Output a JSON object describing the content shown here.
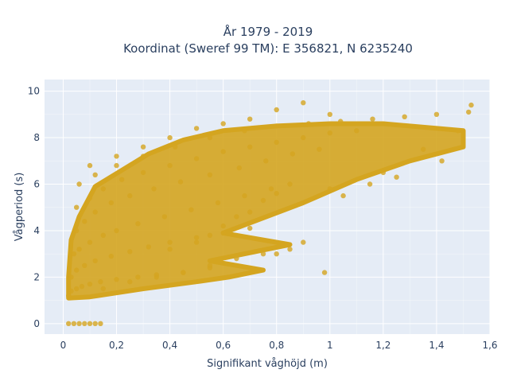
{
  "chart_data": {
    "type": "scatter",
    "title": [
      "År 1979 - 2019",
      "Koordinat (Sweref 99 TM): E 356821, N 6235240"
    ],
    "xlabel": "Signifikant våghöjd (m)",
    "ylabel": "Vågperiod (s)",
    "xlim": [
      -0.07,
      1.6
    ],
    "ylim": [
      -0.45,
      10.5
    ],
    "xticks": [
      0,
      0.2,
      0.4,
      0.6,
      0.8,
      1,
      1.2,
      1.4,
      1.6
    ],
    "xtick_labels": [
      "0",
      "0,2",
      "0,4",
      "0,6",
      "0,8",
      "1",
      "1,2",
      "1,4",
      "1,6"
    ],
    "yticks": [
      0,
      2,
      4,
      6,
      8,
      10
    ],
    "ytick_labels": [
      "0",
      "2",
      "4",
      "6",
      "8",
      "10"
    ],
    "grid": true,
    "colors": {
      "marker": "#D4A520",
      "plot_bg": "#E5ECF6",
      "grid": "#ffffff"
    },
    "series": [
      {
        "x": [
          0.02,
          0.04,
          0.06,
          0.08,
          0.1,
          0.12,
          0.14,
          0.02,
          0.03,
          0.05,
          0.07,
          0.1,
          0.14,
          0.2,
          0.28,
          0.35,
          0.45,
          0.55,
          0.03,
          0.05,
          0.08,
          0.12,
          0.18,
          0.25,
          0.32,
          0.4,
          0.5,
          0.6,
          0.7,
          0.04,
          0.06,
          0.1,
          0.15,
          0.2,
          0.28,
          0.38,
          0.48,
          0.58,
          0.68,
          0.78,
          0.05,
          0.08,
          0.12,
          0.18,
          0.25,
          0.34,
          0.44,
          0.55,
          0.66,
          0.76,
          0.86,
          0.96,
          0.05,
          0.1,
          0.15,
          0.22,
          0.3,
          0.4,
          0.5,
          0.6,
          0.7,
          0.8,
          0.9,
          1.0,
          1.1,
          0.06,
          0.12,
          0.2,
          0.3,
          0.42,
          0.55,
          0.68,
          0.8,
          0.92,
          1.04,
          1.16,
          1.28,
          1.4,
          1.52,
          0.1,
          0.2,
          0.3,
          0.4,
          0.5,
          0.6,
          0.7,
          0.8,
          0.9,
          0.15,
          0.25,
          0.35,
          0.45,
          0.55,
          0.65,
          0.75,
          0.85,
          1.0,
          1.2,
          1.35,
          1.48,
          1.53,
          0.4,
          0.5,
          0.55,
          0.6,
          0.65,
          0.7,
          0.75,
          0.8,
          0.85,
          0.8,
          0.9,
          1.05,
          1.15,
          1.25,
          1.42,
          0.98,
          1.0
        ],
        "y": [
          0.0,
          0.0,
          0.0,
          0.0,
          0.0,
          0.0,
          0.0,
          1.2,
          1.4,
          1.5,
          1.6,
          1.7,
          1.8,
          1.9,
          2.0,
          2.1,
          2.2,
          2.4,
          2.0,
          2.3,
          2.5,
          2.7,
          2.9,
          3.1,
          3.3,
          3.5,
          3.7,
          3.9,
          4.1,
          3.0,
          3.2,
          3.5,
          3.8,
          4.0,
          4.3,
          4.6,
          4.9,
          5.2,
          5.5,
          5.8,
          4.0,
          4.4,
          4.8,
          5.2,
          5.5,
          5.8,
          6.1,
          6.4,
          6.7,
          7.0,
          7.3,
          7.5,
          5.0,
          5.4,
          5.8,
          6.2,
          6.5,
          6.8,
          7.1,
          7.4,
          7.6,
          7.8,
          8.0,
          8.2,
          8.3,
          6.0,
          6.4,
          6.8,
          7.2,
          7.6,
          8.0,
          8.3,
          8.5,
          8.6,
          8.7,
          8.8,
          8.9,
          9.0,
          9.1,
          6.8,
          7.2,
          7.6,
          8.0,
          8.4,
          8.6,
          8.8,
          9.2,
          9.5,
          1.5,
          1.8,
          2.0,
          2.2,
          2.5,
          2.8,
          3.0,
          3.2,
          5.8,
          6.5,
          7.5,
          8.3,
          9.4,
          3.2,
          3.5,
          3.8,
          4.2,
          4.6,
          4.8,
          5.3,
          5.6,
          6.0,
          3.0,
          3.5,
          5.5,
          6.0,
          6.3,
          7.0,
          2.2,
          9.0
        ]
      }
    ]
  }
}
